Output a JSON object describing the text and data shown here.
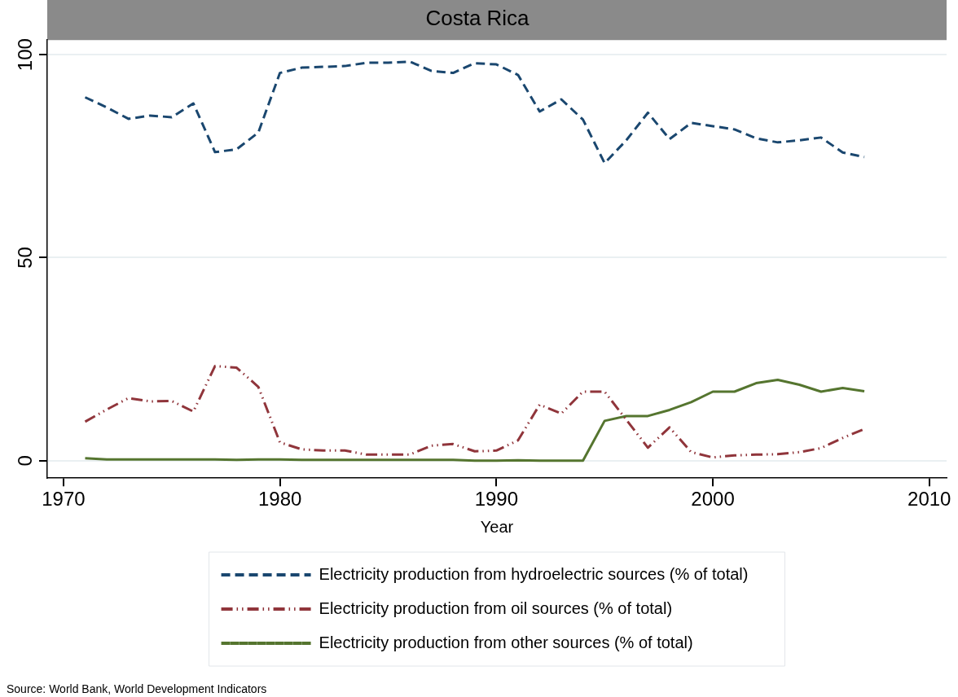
{
  "chart_data": {
    "type": "line",
    "title": "Costa Rica",
    "xlabel": "Year",
    "x": [
      1971,
      1972,
      1973,
      1974,
      1975,
      1976,
      1977,
      1978,
      1979,
      1980,
      1981,
      1982,
      1983,
      1984,
      1985,
      1986,
      1987,
      1988,
      1989,
      1990,
      1991,
      1992,
      1993,
      1994,
      1995,
      1996,
      1997,
      1998,
      1999,
      2000,
      2001,
      2002,
      2003,
      2004,
      2005,
      2006,
      2007
    ],
    "series": [
      {
        "name": "Electricity production from hydroelectric sources (% of total)",
        "color": "#1a476f",
        "line_style": "dashed",
        "values": [
          89.5,
          87,
          84.2,
          85,
          84.6,
          88,
          76,
          76.7,
          80.8,
          95.5,
          96.8,
          97,
          97.2,
          98,
          98,
          98.3,
          96,
          95.5,
          97.9,
          97.6,
          95,
          86,
          89,
          84,
          73.3,
          78.9,
          85.7,
          79.2,
          83.2,
          82.4,
          81.6,
          79.4,
          78.4,
          78.9,
          79.6,
          75.9,
          74.8
        ]
      },
      {
        "name": "Electricity production from oil sources (% of total)",
        "color": "#90353b",
        "line_style": "dashdot",
        "values": [
          9.6,
          12.6,
          15.4,
          14.6,
          14.7,
          12.1,
          23.3,
          22.9,
          18.2,
          4.5,
          2.8,
          2.5,
          2.5,
          1.5,
          1.5,
          1.5,
          3.7,
          4.1,
          2.3,
          2.5,
          5,
          13.8,
          11.6,
          17,
          17,
          10.1,
          3.2,
          8.2,
          2.1,
          0.8,
          1.3,
          1.5,
          1.6,
          2.1,
          3.1,
          5.6,
          7.8
        ]
      },
      {
        "name": "Electricity production from other sources (% of total)",
        "color": "#55752f",
        "line_style": "solid",
        "values": [
          0.6,
          0.3,
          0.3,
          0.3,
          0.3,
          0.3,
          0.3,
          0.2,
          0.3,
          0.3,
          0.2,
          0.2,
          0.2,
          0.2,
          0.2,
          0.2,
          0.2,
          0.2,
          0,
          0,
          0.1,
          0,
          0,
          0,
          9.8,
          11,
          11,
          12.5,
          14.4,
          17,
          17,
          19.1,
          19.9,
          18.7,
          17,
          17.9,
          17.1
        ]
      }
    ],
    "xlim": [
      1969.25,
      2010.8
    ],
    "xticks": [
      1970,
      1980,
      1990,
      2000,
      2010
    ],
    "ylim": [
      -4.3,
      103.6
    ],
    "yticks": [
      0,
      50,
      100
    ],
    "grid": "y",
    "legend": "bottom",
    "marker": "none",
    "annotations": [
      "Source: World Bank, World Development Indicators"
    ]
  }
}
